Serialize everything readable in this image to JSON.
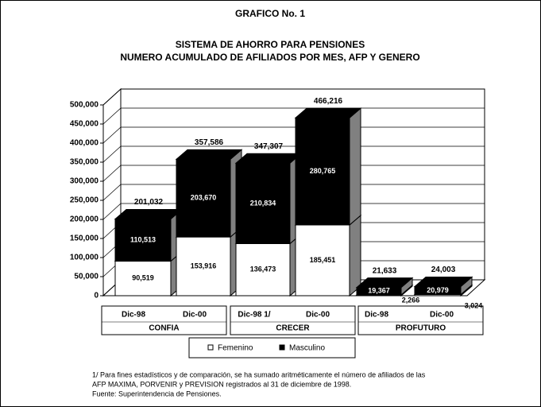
{
  "chart_data": {
    "type": "bar3d_stacked",
    "title": "GRAFICO No. 1",
    "subtitle": [
      "SISTEMA DE AHORRO PARA PENSIONES",
      "NUMERO ACUMULADO DE AFILIADOS POR MES, AFP Y GENERO"
    ],
    "categories": [
      "Dic-98",
      "Dic-00",
      "Dic-98 1/",
      "Dic-00",
      "Dic-98",
      "Dic-00"
    ],
    "groups": [
      "CONFIA",
      "CRECER",
      "PROFUTURO"
    ],
    "series": [
      {
        "name": "Femenino",
        "color": "#ffffff",
        "values": [
          90519,
          153916,
          136473,
          185451,
          2266,
          3024
        ],
        "value_labels": [
          "90,519",
          "153,916",
          "136,473",
          "185,451",
          "2,266",
          "3,024"
        ]
      },
      {
        "name": "Masculino",
        "color": "#000000",
        "values": [
          110513,
          203670,
          210834,
          280765,
          19367,
          20979
        ],
        "value_labels": [
          "110,513",
          "203,670",
          "210,834",
          "280,765",
          "19,367",
          "20,979"
        ]
      }
    ],
    "totals": [
      201032,
      357586,
      347307,
      466216,
      21633,
      24003
    ],
    "total_labels": [
      "201,032",
      "357,586",
      "347,307",
      "466,216",
      "21,633",
      "24,003"
    ],
    "ylim": [
      0,
      500000
    ],
    "yticks": [
      0,
      {
        "value": 50000,
        "label": "50,000"
      },
      {
        "value": 100000,
        "label": "100,000"
      },
      {
        "value": 150000,
        "label": "150,000"
      },
      {
        "value": 200000,
        "label": "200,000"
      },
      {
        "value": 250000,
        "label": "250,000"
      },
      {
        "value": 300000,
        "label": "300,000"
      },
      {
        "value": 350000,
        "label": "350,000"
      },
      {
        "value": 400000,
        "label": "400,000"
      },
      {
        "value": 450000,
        "label": "450,000"
      },
      {
        "value": 500000,
        "label": "500,000"
      }
    ],
    "grid": true,
    "footnotes": [
      "1/ Para fines estadísticos y de comparación, se ha sumado aritméticamente el número de afiliados de las",
      "AFP MAXIMA, PORVENIR y PREVISION registrados al 31 de diciembre de 1998.",
      "Fuente: Superintendencia de Pensiones."
    ]
  }
}
